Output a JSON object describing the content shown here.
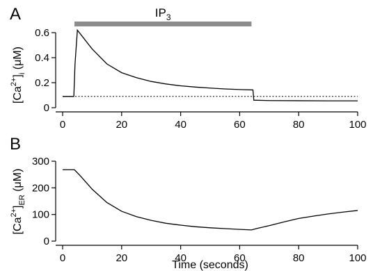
{
  "chart_data": [
    {
      "panel": "A",
      "type": "line",
      "ylabel": "[Ca2+]i (μM)",
      "ylabel_parts": {
        "open": "[Ca",
        "sup": "2+",
        "close": "]",
        "sub": "i",
        "unit": " (μM)"
      },
      "xlim": [
        0,
        100
      ],
      "ylim": [
        0,
        0.65
      ],
      "xticks": [
        0,
        20,
        40,
        60,
        80,
        100
      ],
      "yticks": [
        0,
        0.2,
        0.4,
        0.6
      ],
      "ytick_labels": [
        "0",
        "0.2",
        "0.4",
        "0.6"
      ],
      "stimulus_bar": {
        "label": "IP",
        "label_sub": "3",
        "x_start": 4,
        "x_end": 64,
        "color": "#8c8c8c"
      },
      "baseline": {
        "value": 0.09,
        "style": "dotted"
      },
      "series": [
        {
          "x": [
            0,
            3.8,
            4.2,
            5,
            7,
            10,
            15,
            20,
            25,
            30,
            35,
            40,
            45,
            50,
            55,
            60,
            64.5,
            64.8,
            70,
            80,
            90,
            100
          ],
          "y": [
            0.09,
            0.09,
            0.35,
            0.62,
            0.56,
            0.47,
            0.35,
            0.28,
            0.24,
            0.21,
            0.19,
            0.175,
            0.165,
            0.157,
            0.15,
            0.145,
            0.142,
            0.06,
            0.057,
            0.056,
            0.055,
            0.055
          ]
        }
      ]
    },
    {
      "panel": "B",
      "type": "line",
      "ylabel": "[Ca2+]ER (μM)",
      "ylabel_parts": {
        "open": "[Ca",
        "sup": "2+",
        "close": "]",
        "sub": "ER",
        "unit": " (μM)"
      },
      "xlabel": "Time (seconds)",
      "xlim": [
        0,
        100
      ],
      "ylim": [
        0,
        300
      ],
      "xticks": [
        0,
        20,
        40,
        60,
        80,
        100
      ],
      "yticks": [
        0,
        100,
        200,
        300
      ],
      "ytick_labels": [
        "0",
        "100",
        "200",
        "300"
      ],
      "series": [
        {
          "x": [
            0,
            4,
            6,
            10,
            15,
            20,
            25,
            30,
            35,
            40,
            45,
            50,
            55,
            60,
            64,
            66,
            70,
            75,
            80,
            85,
            90,
            95,
            100
          ],
          "y": [
            268,
            268,
            245,
            195,
            145,
            112,
            92,
            78,
            67,
            60,
            54,
            50,
            47,
            44,
            42,
            48,
            58,
            72,
            85,
            94,
            102,
            109,
            115
          ]
        }
      ]
    }
  ]
}
